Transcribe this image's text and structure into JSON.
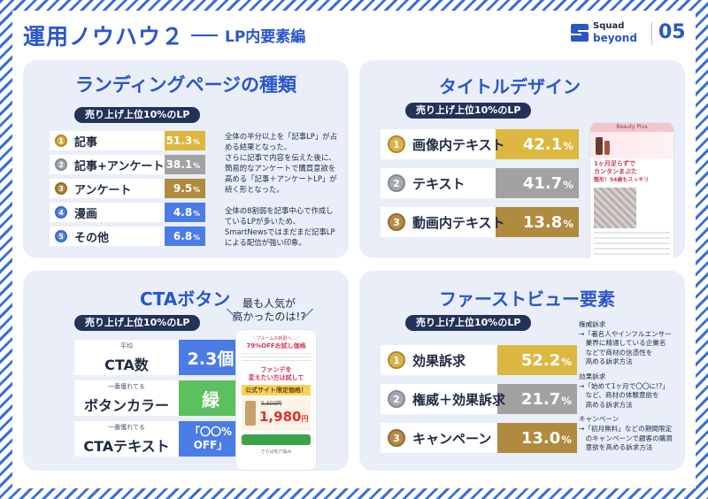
{
  "header": {
    "title": "運用ノウハウ２",
    "subtitle": "LP内要素編",
    "logo_line1": "Squad",
    "logo_line2": "beyond",
    "page_number": "05"
  },
  "lp_types": {
    "title": "ランディングページの種類",
    "pill": "売り上げ上位10%のLP",
    "rows": [
      {
        "rank": "1",
        "label": "記事",
        "value": "51.3",
        "unit": "%"
      },
      {
        "rank": "2",
        "label": "記事+アンケート",
        "value": "38.1",
        "unit": "%"
      },
      {
        "rank": "3",
        "label": "アンケート",
        "value": "9.5",
        "unit": "%"
      },
      {
        "rank": "4",
        "label": "漫画",
        "value": "4.8",
        "unit": "%"
      },
      {
        "rank": "5",
        "label": "その他",
        "value": "6.8",
        "unit": "%"
      }
    ],
    "note": [
      "全体の半分以上を「記事LP」が占",
      "める結果となった。",
      "さらに記事で内容を伝えた後に、",
      "簡易的なアンケートで購買意欲を",
      "高める「記事＋アンケートLP」が",
      "続く形となった。",
      "",
      "全体の8割弱を記事中心で作成し",
      "ているLPが多いため、",
      "SmartNewsではまだまだ記事LP",
      "による配信が強い印象。"
    ]
  },
  "title_design": {
    "title": "タイトルデザイン",
    "pill": "売り上げ上位10%のLP",
    "rows": [
      {
        "rank": "1",
        "label": "画像内テキスト",
        "value": "42.1",
        "unit": "%"
      },
      {
        "rank": "2",
        "label": "テキスト",
        "value": "41.7",
        "unit": "%"
      },
      {
        "rank": "3",
        "label": "動画内テキスト",
        "value": "13.8",
        "unit": "%"
      }
    ],
    "phone": {
      "brand": "Beauty Plus",
      "headline": [
        "1ヶ月足らずで",
        "カンタンまぶた",
        "整形！54歳もスッキリ"
      ]
    }
  },
  "cta": {
    "title": "CTAボタン",
    "callout": [
      "最も人気が",
      "高かったのは!?"
    ],
    "pill": "売り上げ上位10%のLP",
    "rows": [
      {
        "small": "平均",
        "label": "CTA数",
        "value": "2.3個"
      },
      {
        "small": "一番獲れてる",
        "label": "ボタンカラー",
        "value": "緑"
      },
      {
        "small": "一番獲れてる",
        "label": "CTAテキスト",
        "value": "「〇〇% OFF」"
      }
    ],
    "phone": {
      "head1": "＼ブルームの新肌へ…／",
      "head2": "79%OFFお試し価格",
      "sub": "ファンデを",
      "sub2": "変えたい方は試して",
      "badge": "公式サイト限定価格！",
      "old_price": "9,600円",
      "price": "1,980",
      "price_unit": "円",
      "foot": "さらば毛穴悩み"
    }
  },
  "first_view": {
    "title": "ファーストビュー要素",
    "pill": "売り上げ上位10%のLP",
    "rows": [
      {
        "rank": "1",
        "label": "効果訴求",
        "value": "52.2",
        "unit": "%"
      },
      {
        "rank": "2",
        "label": "権威＋効果訴求",
        "value": "21.7",
        "unit": "%"
      },
      {
        "rank": "3",
        "label": "キャンペーン",
        "value": "13.0",
        "unit": "%"
      }
    ],
    "note": [
      "権威訴求",
      "→「著名人やインフルエンサー",
      "　業界に精通している企業名",
      "　などで商材の信憑性を",
      "　高める訴求方法",
      "",
      "効果訴求",
      "→「始めて1ヶ月で〇〇に!?」",
      "　など、商材の体験意欲を",
      "　高める訴求方法",
      "",
      "キャンペーン",
      "→「初月無料」などの期間限定",
      "　のキャンペーンで顧客の購買",
      "　意欲を高める訴求方法"
    ]
  },
  "colors": {
    "accent": "#2a56c8",
    "navy": "#233256",
    "panel": "#e9eef9",
    "gold": "#dcb840",
    "silver": "#a2a2a2",
    "bronze": "#b08a3e",
    "blue": "#4b7ce6",
    "green": "#5cc05e"
  }
}
